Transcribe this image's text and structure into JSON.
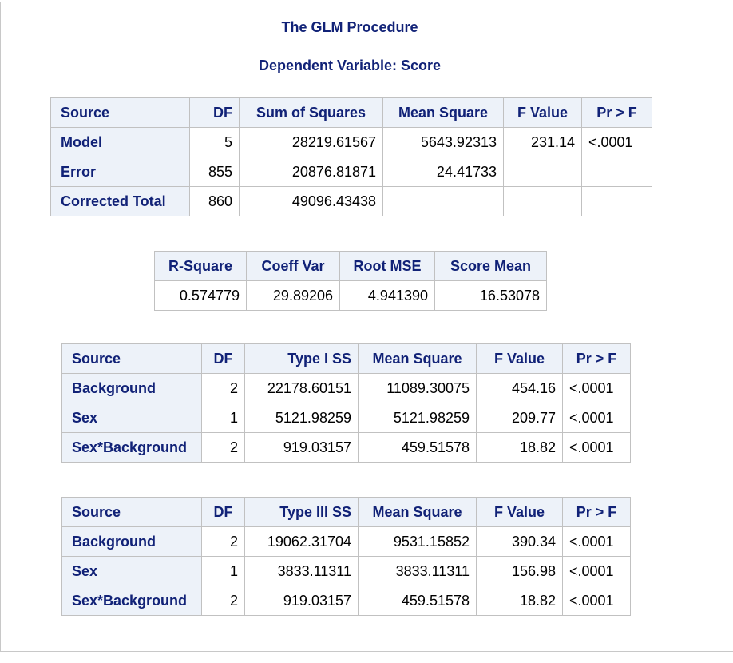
{
  "titles": {
    "procedure": "The GLM Procedure",
    "dependent": "Dependent Variable: Score"
  },
  "anova": {
    "headers": [
      "Source",
      "DF",
      "Sum of Squares",
      "Mean Square",
      "F Value",
      "Pr > F"
    ],
    "rows": [
      {
        "source": "Model",
        "df": "5",
        "ss": "28219.61567",
        "ms": "5643.92313",
        "f": "231.14",
        "p": "<.0001"
      },
      {
        "source": "Error",
        "df": "855",
        "ss": "20876.81871",
        "ms": "24.41733",
        "f": "",
        "p": ""
      },
      {
        "source": "Corrected Total",
        "df": "860",
        "ss": "49096.43438",
        "ms": "",
        "f": "",
        "p": ""
      }
    ]
  },
  "fit": {
    "headers": [
      "R-Square",
      "Coeff Var",
      "Root MSE",
      "Score Mean"
    ],
    "values": [
      "0.574779",
      "29.89206",
      "4.941390",
      "16.53078"
    ]
  },
  "type1": {
    "headers": [
      "Source",
      "DF",
      "Type I SS",
      "Mean Square",
      "F Value",
      "Pr > F"
    ],
    "rows": [
      {
        "source": "Background",
        "df": "2",
        "ss": "22178.60151",
        "ms": "11089.30075",
        "f": "454.16",
        "p": "<.0001"
      },
      {
        "source": "Sex",
        "df": "1",
        "ss": "5121.98259",
        "ms": "5121.98259",
        "f": "209.77",
        "p": "<.0001"
      },
      {
        "source": "Sex*Background",
        "df": "2",
        "ss": "919.03157",
        "ms": "459.51578",
        "f": "18.82",
        "p": "<.0001"
      }
    ]
  },
  "type3": {
    "headers": [
      "Source",
      "DF",
      "Type III SS",
      "Mean Square",
      "F Value",
      "Pr > F"
    ],
    "rows": [
      {
        "source": "Background",
        "df": "2",
        "ss": "19062.31704",
        "ms": "9531.15852",
        "f": "390.34",
        "p": "<.0001"
      },
      {
        "source": "Sex",
        "df": "1",
        "ss": "3833.11311",
        "ms": "3833.11311",
        "f": "156.98",
        "p": "<.0001"
      },
      {
        "source": "Sex*Background",
        "df": "2",
        "ss": "919.03157",
        "ms": "459.51578",
        "f": "18.82",
        "p": "<.0001"
      }
    ]
  },
  "colors": {
    "header_bg": "#edf2f9",
    "header_text": "#112277",
    "border": "#c1c1c1"
  }
}
